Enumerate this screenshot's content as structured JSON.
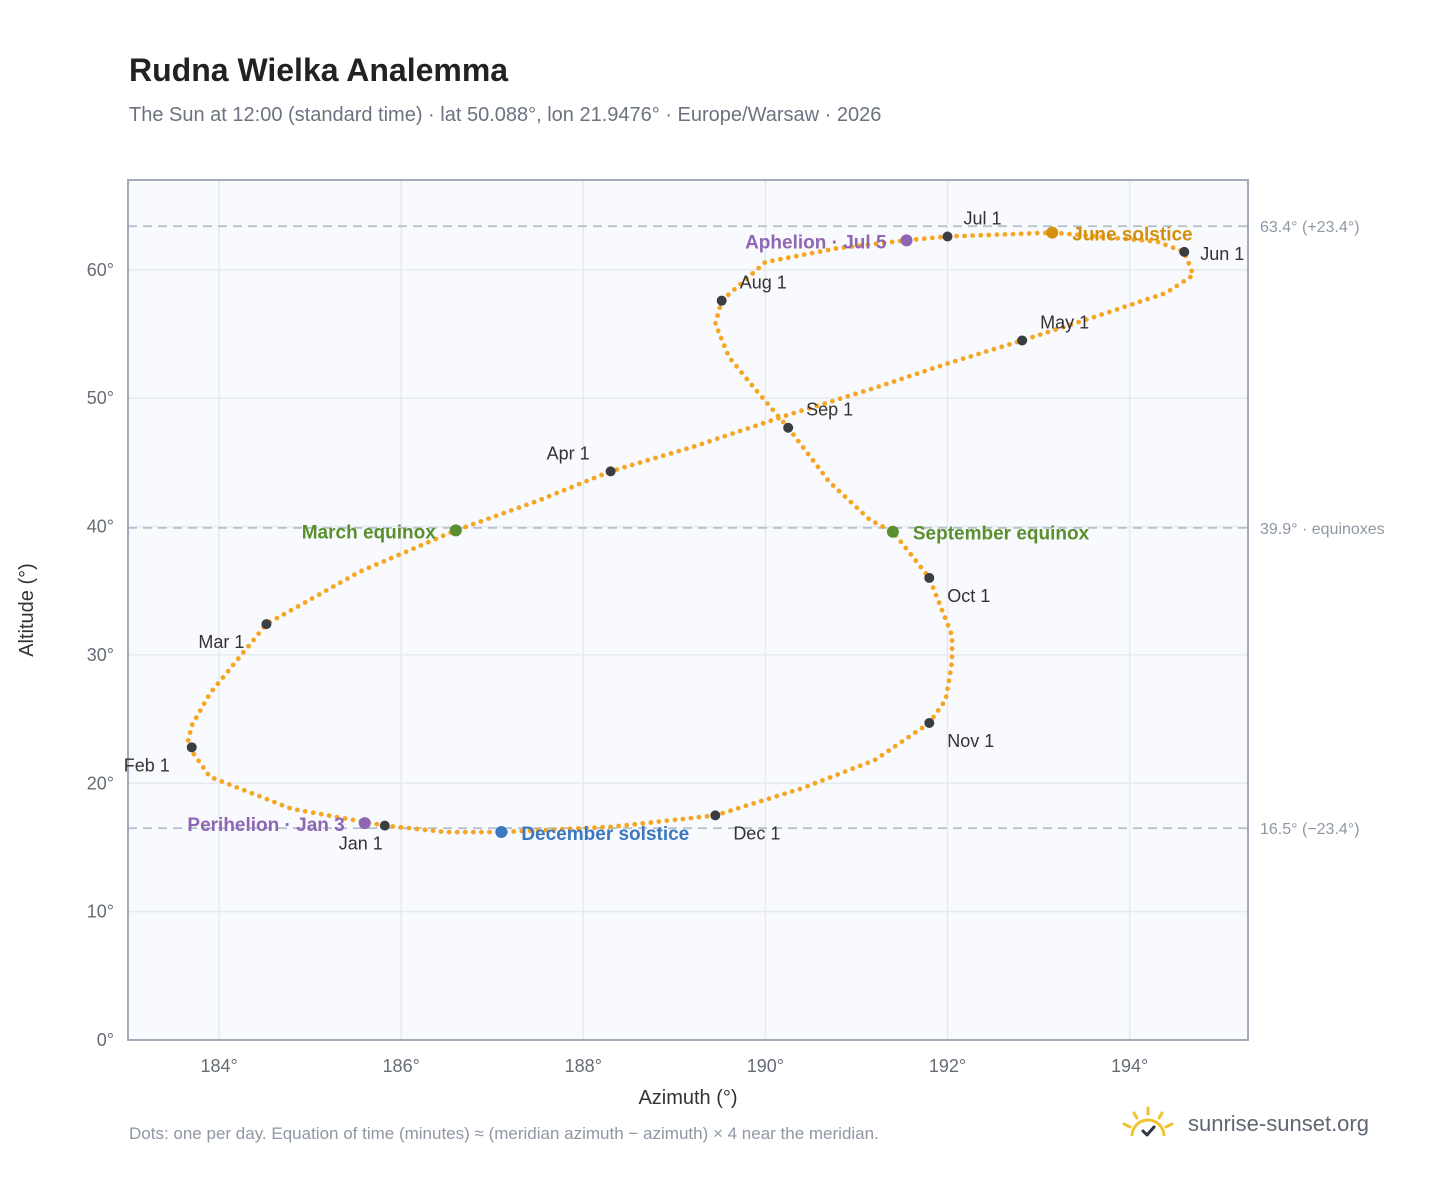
{
  "title": "Rudna Wielka Analemma",
  "subtitle": "The Sun at 12:00 (standard time) · lat 50.088°, lon 21.9476° · Europe/Warsaw · 2026",
  "footnote": "Dots: one per day. Equation of time (minutes) ≈ (meridian azimuth − azimuth) × 4 near the meridian.",
  "brand": {
    "name": "sunrise-sunset.org",
    "icon": "sun-check-icon"
  },
  "colors": {
    "path": "#f5a623",
    "month_marker": "#3a3d42",
    "equinox": "#5a8f2e",
    "aphelion_perihelion": "#8e66b3",
    "june_solstice": "#d4900a",
    "december_solstice": "#3c78bf",
    "plot_bg": "#f8fafd",
    "grid": "#e6eaf0",
    "frame": "#9aa4b2",
    "ref_line": "#b6c1ce"
  },
  "chart_data": {
    "type": "scatter",
    "title": "Rudna Wielka Analemma",
    "xlabel": "Azimuth (°)",
    "ylabel": "Altitude (°)",
    "xlim": [
      183,
      195.3
    ],
    "ylim": [
      0,
      67
    ],
    "grid": true,
    "x_ticks": [
      184,
      186,
      188,
      190,
      192,
      194
    ],
    "x_tick_labels": [
      "184°",
      "186°",
      "188°",
      "190°",
      "192°",
      "194°"
    ],
    "y_ticks": [
      0,
      10,
      20,
      30,
      40,
      50,
      60
    ],
    "y_tick_labels": [
      "0°",
      "10°",
      "20°",
      "30°",
      "40°",
      "50°",
      "60°"
    ],
    "reference_lines": [
      {
        "y": 63.4,
        "label": "63.4° (+23.4°)"
      },
      {
        "y": 39.9,
        "label": "39.9° · equinoxes"
      },
      {
        "y": 16.5,
        "label": "16.5° (−23.4°)"
      }
    ],
    "path_series": {
      "name": "",
      "points": [
        [
          185.82,
          16.7
        ],
        [
          184.8,
          18.0
        ],
        [
          183.9,
          20.5
        ],
        [
          183.65,
          23.0
        ],
        [
          183.7,
          24.5
        ],
        [
          183.9,
          27.0
        ],
        [
          184.52,
          32.4
        ],
        [
          185.55,
          36.5
        ],
        [
          186.6,
          39.7
        ],
        [
          187.5,
          42.0
        ],
        [
          188.3,
          44.3
        ],
        [
          189.2,
          46.2
        ],
        [
          190.25,
          48.7
        ],
        [
          191.2,
          50.8
        ],
        [
          192.0,
          52.7
        ],
        [
          192.82,
          54.5
        ],
        [
          193.6,
          56.3
        ],
        [
          194.4,
          58.2
        ],
        [
          194.7,
          59.6
        ],
        [
          194.6,
          61.4
        ],
        [
          194.3,
          62.2
        ],
        [
          193.15,
          62.9
        ],
        [
          192.0,
          62.6
        ],
        [
          191.55,
          62.3
        ],
        [
          190.8,
          61.7
        ],
        [
          190.0,
          60.6
        ],
        [
          189.52,
          57.6
        ],
        [
          189.45,
          55.8
        ],
        [
          189.6,
          53.2
        ],
        [
          189.9,
          50.6
        ],
        [
          190.25,
          47.7
        ],
        [
          190.7,
          43.5
        ],
        [
          191.15,
          40.5
        ],
        [
          191.4,
          39.6
        ],
        [
          191.8,
          36.0
        ],
        [
          192.05,
          31.5
        ],
        [
          192.05,
          29.5
        ],
        [
          191.98,
          26.5
        ],
        [
          191.8,
          24.7
        ],
        [
          191.2,
          21.8
        ],
        [
          190.4,
          19.6
        ],
        [
          189.45,
          17.5
        ],
        [
          188.3,
          16.6
        ],
        [
          187.1,
          16.2
        ],
        [
          186.5,
          16.2
        ],
        [
          185.82,
          16.7
        ]
      ]
    },
    "month_markers": [
      {
        "label": "Jan 1",
        "x": 185.82,
        "y": 16.7
      },
      {
        "label": "Feb 1",
        "x": 183.7,
        "y": 22.8
      },
      {
        "label": "Mar 1",
        "x": 184.52,
        "y": 32.4
      },
      {
        "label": "Apr 1",
        "x": 188.3,
        "y": 44.3
      },
      {
        "label": "May 1",
        "x": 192.82,
        "y": 54.5
      },
      {
        "label": "Jun 1",
        "x": 194.6,
        "y": 61.4
      },
      {
        "label": "Jul 1",
        "x": 192.0,
        "y": 62.6
      },
      {
        "label": "Aug 1",
        "x": 189.52,
        "y": 57.6
      },
      {
        "label": "Sep 1",
        "x": 190.25,
        "y": 47.7
      },
      {
        "label": "Oct 1",
        "x": 191.8,
        "y": 36.0
      },
      {
        "label": "Nov 1",
        "x": 191.8,
        "y": 24.7
      },
      {
        "label": "Dec 1",
        "x": 189.45,
        "y": 17.5
      }
    ],
    "events": [
      {
        "label": "March equinox",
        "x": 186.6,
        "y": 39.7,
        "kind": "equinox"
      },
      {
        "label": "September equinox",
        "x": 191.4,
        "y": 39.6,
        "kind": "equinox"
      },
      {
        "label": "June solstice",
        "x": 193.15,
        "y": 62.9,
        "kind": "june_solstice"
      },
      {
        "label": "December solstice",
        "x": 187.1,
        "y": 16.2,
        "kind": "december_solstice"
      },
      {
        "label": "Aphelion · Jul 5",
        "x": 191.55,
        "y": 62.3,
        "kind": "aphelion_perihelion"
      },
      {
        "label": "Perihelion · Jan 3",
        "x": 185.6,
        "y": 16.9,
        "kind": "aphelion_perihelion"
      }
    ]
  }
}
